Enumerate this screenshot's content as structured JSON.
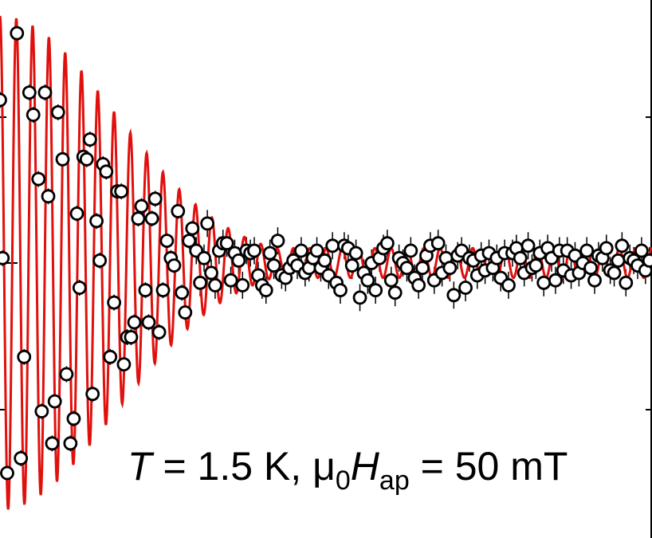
{
  "chart_data": {
    "type": "scatter",
    "title": "",
    "xlabel": "",
    "ylabel": "",
    "annotation": {
      "T_symbol": "T",
      "T_value": " = 1.5 K, ",
      "mu": "μ",
      "mu_sub": "0",
      "H_symbol": "H",
      "H_sub": "ap",
      "H_value": " = 50 mT"
    },
    "x_range": [
      0,
      1
    ],
    "y_range": [
      -1,
      1
    ],
    "grid": false,
    "legend": "none",
    "series": [
      {
        "kind": "points",
        "style": "open black circles with vertical error bars",
        "x": [
          0.0,
          0.004,
          0.011,
          0.026,
          0.032,
          0.037,
          0.045,
          0.051,
          0.059,
          0.064,
          0.069,
          0.074,
          0.08,
          0.084,
          0.089,
          0.096,
          0.102,
          0.108,
          0.113,
          0.118,
          0.122,
          0.128,
          0.133,
          0.138,
          0.142,
          0.148,
          0.153,
          0.158,
          0.163,
          0.169,
          0.175,
          0.18,
          0.186,
          0.19,
          0.195,
          0.201,
          0.206,
          0.212,
          0.217,
          0.223,
          0.228,
          0.233,
          0.238,
          0.244,
          0.25,
          0.256,
          0.262,
          0.267,
          0.273,
          0.279,
          0.284,
          0.29,
          0.295,
          0.301,
          0.307,
          0.313,
          0.318,
          0.324,
          0.33,
          0.336,
          0.342,
          0.348,
          0.354,
          0.36,
          0.366,
          0.372,
          0.378,
          0.384,
          0.39,
          0.396,
          0.402,
          0.408,
          0.414,
          0.42,
          0.426,
          0.432,
          0.438,
          0.444,
          0.45,
          0.456,
          0.462,
          0.468,
          0.474,
          0.48,
          0.486,
          0.492,
          0.498,
          0.504,
          0.51,
          0.516,
          0.522,
          0.528,
          0.534,
          0.54,
          0.546,
          0.552,
          0.558,
          0.564,
          0.57,
          0.576,
          0.582,
          0.588,
          0.594,
          0.6,
          0.606,
          0.612,
          0.618,
          0.624,
          0.63,
          0.636,
          0.642,
          0.648,
          0.654,
          0.66,
          0.666,
          0.672,
          0.678,
          0.684,
          0.69,
          0.696,
          0.702,
          0.708,
          0.714,
          0.72,
          0.726,
          0.732,
          0.738,
          0.744,
          0.75,
          0.756,
          0.762,
          0.768,
          0.774,
          0.78,
          0.786,
          0.792,
          0.798,
          0.804,
          0.81,
          0.816,
          0.822,
          0.828,
          0.834,
          0.84,
          0.846,
          0.852,
          0.858,
          0.864,
          0.87,
          0.876,
          0.882,
          0.888,
          0.894,
          0.9,
          0.906,
          0.912,
          0.918,
          0.924,
          0.93,
          0.936,
          0.942,
          0.948,
          0.954,
          0.96,
          0.966,
          0.972,
          0.978,
          0.984,
          0.99,
          0.996
        ],
        "y": [
          0.66,
          0.02,
          -0.85,
          0.93,
          -0.79,
          -0.38,
          0.69,
          0.6,
          0.34,
          -0.6,
          0.69,
          0.27,
          -0.73,
          -0.56,
          0.61,
          0.42,
          -0.45,
          -0.73,
          -0.63,
          0.2,
          -0.1,
          0.43,
          0.42,
          0.5,
          -0.53,
          0.17,
          0.01,
          0.4,
          0.37,
          -0.38,
          -0.16,
          0.29,
          0.29,
          -0.41,
          -0.3,
          -0.3,
          -0.24,
          0.18,
          0.23,
          -0.11,
          -0.24,
          0.18,
          0.26,
          -0.28,
          -0.11,
          0.09,
          0.02,
          -0.01,
          0.21,
          -0.12,
          -0.2,
          0.09,
          0.14,
          0.05,
          -0.08,
          0.02,
          0.16,
          -0.04,
          -0.09,
          0.05,
          0.08,
          0.08,
          -0.07,
          0.04,
          0.01,
          -0.09,
          0.05,
          0.04,
          0.05,
          -0.05,
          -0.09,
          -0.11,
          0.04,
          -0.01,
          0.09,
          -0.05,
          -0.06,
          -0.02,
          0.01,
          -0.01,
          0.05,
          -0.04,
          -0.02,
          0.02,
          0.05,
          -0.02,
          0.01,
          -0.05,
          0.07,
          -0.08,
          -0.11,
          0.07,
          0.06,
          -0.01,
          0.04,
          -0.14,
          -0.04,
          -0.07,
          0.0,
          -0.11,
          0.02,
          0.06,
          0.08,
          -0.07,
          -0.12,
          0.02,
          0.0,
          -0.02,
          0.05,
          -0.06,
          -0.09,
          -0.02,
          0.03,
          0.07,
          -0.07,
          0.08,
          -0.04,
          0.02,
          -0.02,
          -0.13,
          0.03,
          0.05,
          -0.1,
          0.02,
          0.01,
          -0.05,
          0.03,
          -0.03,
          0.04,
          -0.02,
          0.02,
          -0.06,
          0.04,
          -0.09,
          0.04,
          0.06,
          0.02,
          -0.04,
          0.07,
          -0.02,
          -0.01,
          0.04,
          -0.08,
          0.06,
          0.02,
          -0.07,
          0.05,
          -0.03,
          0.05,
          -0.05,
          0.03,
          -0.04,
          0.0,
          0.05,
          -0.02,
          -0.07,
          0.03,
          0.02,
          0.06,
          -0.03,
          -0.04,
          0.01,
          0.07,
          -0.08,
          0.02,
          0.01,
          -0.01,
          0.05,
          -0.03,
          0.01
        ]
      },
      {
        "kind": "fit",
        "style": "red solid line",
        "model": "damped cosine",
        "amplitude": 1.0,
        "cycles": 40,
        "damping_envelope": "exp(-(x/0.25)^2), plateau 0.06"
      }
    ]
  },
  "colors": {
    "points": "#000000",
    "fit": "#e0100c",
    "axes": "#000000",
    "background": "#ffffff"
  }
}
